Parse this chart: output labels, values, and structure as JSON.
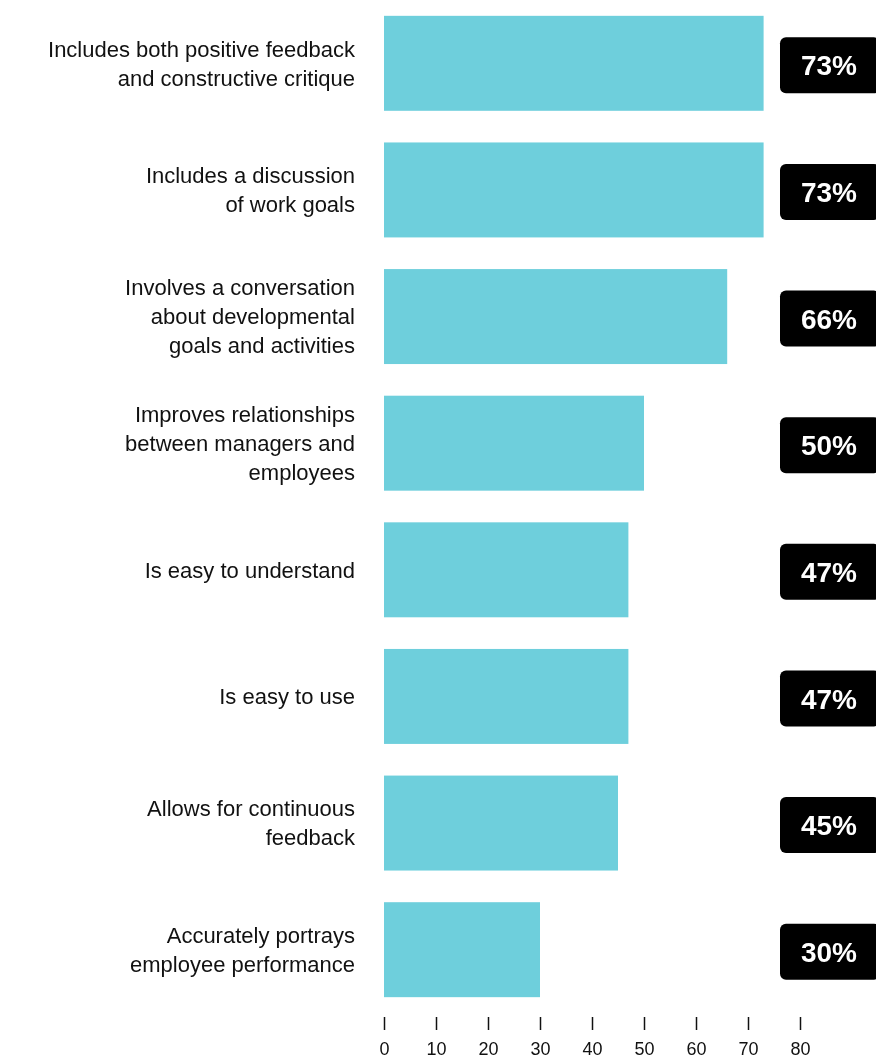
{
  "chart_data": {
    "type": "bar",
    "orientation": "horizontal",
    "categories": [
      "Includes both positive feedback\nand constructive critique",
      "Includes a discussion\nof work goals",
      "Involves a conversation\nabout developmental\ngoals and activities",
      "Improves relationships\nbetween managers and\nemployees",
      "Is easy to understand",
      "Is easy to use",
      "Allows for continuous\nfeedback",
      "Accurately portrays\nemployee performance"
    ],
    "values": [
      73,
      73,
      66,
      50,
      47,
      47,
      45,
      30
    ],
    "value_labels": [
      "73%",
      "73%",
      "66%",
      "50%",
      "47%",
      "47%",
      "45%",
      "30%"
    ],
    "color": "#6ecfdc",
    "xlim": [
      0,
      80
    ],
    "xticks": [
      0,
      10,
      20,
      30,
      40,
      50,
      60,
      70,
      80
    ]
  }
}
